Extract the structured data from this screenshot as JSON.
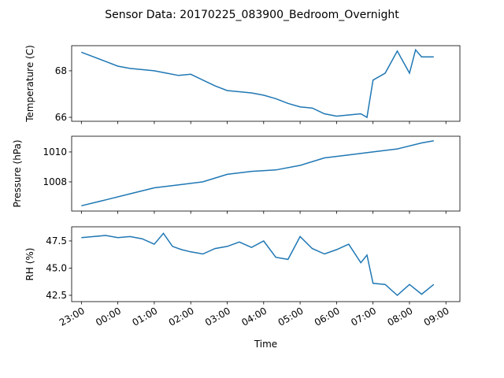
{
  "chart_data": [
    {
      "type": "line",
      "title": "Sensor Data: 20170225_083900_Bedroom_Overnight",
      "ylabel": "Temperature (C)",
      "color": "#1f77b4",
      "x": [
        "23:00",
        "23:20",
        "23:40",
        "00:00",
        "00:20",
        "00:40",
        "01:00",
        "01:20",
        "01:40",
        "02:00",
        "02:20",
        "02:40",
        "03:00",
        "03:20",
        "03:40",
        "04:00",
        "04:20",
        "04:40",
        "05:00",
        "05:20",
        "05:40",
        "06:00",
        "06:20",
        "06:40",
        "06:50",
        "07:00",
        "07:20",
        "07:40",
        "08:00",
        "08:10",
        "08:20",
        "08:40"
      ],
      "values": [
        68.8,
        68.6,
        68.4,
        68.2,
        68.1,
        68.05,
        68.0,
        67.9,
        67.8,
        67.85,
        67.6,
        67.35,
        67.15,
        67.1,
        67.05,
        66.95,
        66.8,
        66.6,
        66.45,
        66.4,
        66.15,
        66.05,
        66.1,
        66.15,
        66.0,
        67.6,
        67.9,
        68.85,
        67.9,
        68.9,
        68.6,
        68.6
      ],
      "xlim": [
        "22:44",
        "09:23"
      ],
      "ylim": [
        65.83,
        69.08
      ],
      "yticks": [
        66,
        68
      ]
    },
    {
      "type": "line",
      "ylabel": "Pressure (hPa)",
      "color": "#1f77b4",
      "x": [
        "23:00",
        "23:40",
        "00:20",
        "01:00",
        "01:40",
        "02:20",
        "03:00",
        "03:40",
        "04:20",
        "05:00",
        "05:40",
        "06:20",
        "07:00",
        "07:40",
        "08:20",
        "08:40"
      ],
      "values": [
        1006.4,
        1006.8,
        1007.2,
        1007.6,
        1007.8,
        1008.0,
        1008.5,
        1008.7,
        1008.8,
        1009.1,
        1009.6,
        1009.8,
        1010.0,
        1010.2,
        1010.6,
        1010.75
      ],
      "xlim": [
        "22:44",
        "09:23"
      ],
      "ylim": [
        1006.05,
        1011.05
      ],
      "yticks": [
        1008,
        1010
      ]
    },
    {
      "type": "line",
      "ylabel": "RH (%)",
      "xlabel": "Time",
      "color": "#1f77b4",
      "x": [
        "23:00",
        "23:20",
        "23:40",
        "00:00",
        "00:20",
        "00:40",
        "01:00",
        "01:15",
        "01:30",
        "01:45",
        "02:00",
        "02:20",
        "02:40",
        "03:00",
        "03:20",
        "03:40",
        "04:00",
        "04:20",
        "04:40",
        "05:00",
        "05:20",
        "05:40",
        "06:00",
        "06:20",
        "06:40",
        "06:50",
        "07:00",
        "07:20",
        "07:40",
        "08:00",
        "08:20",
        "08:40"
      ],
      "values": [
        47.8,
        47.9,
        48.0,
        47.8,
        47.9,
        47.7,
        47.2,
        48.2,
        47.0,
        46.7,
        46.5,
        46.3,
        46.8,
        47.0,
        47.4,
        46.9,
        47.5,
        46.0,
        45.8,
        47.9,
        46.8,
        46.3,
        46.7,
        47.2,
        45.5,
        46.2,
        43.6,
        43.5,
        42.5,
        43.5,
        42.6,
        43.5
      ],
      "xlim": [
        "22:44",
        "09:23"
      ],
      "ylim": [
        41.92,
        48.8
      ],
      "yticks": [
        42.5,
        {
          "value": 45,
          "label": "45.0"
        },
        47.5
      ],
      "xticks": [
        "23:00",
        "00:00",
        "01:00",
        "02:00",
        "03:00",
        "04:00",
        "05:00",
        "06:00",
        "07:00",
        "08:00",
        "09:00"
      ]
    }
  ]
}
